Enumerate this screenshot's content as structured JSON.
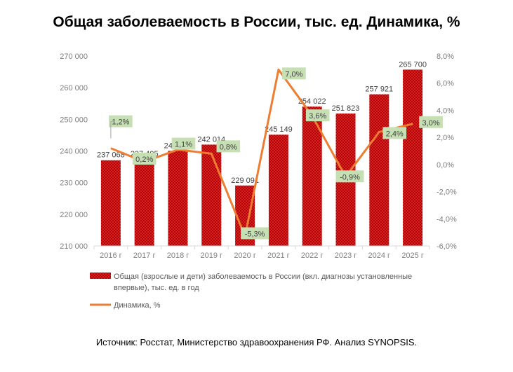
{
  "title": "Общая заболеваемость в России, тыс. ед. Динамика, %",
  "source": "Источник: Росстат, Министерство здравоохранения РФ. Анализ SYNOPSIS.",
  "colors": {
    "bar": "#c00000",
    "bar_dots": "#ffffff",
    "line": "#ed7d31",
    "label_bg": "#c6e0b4",
    "grid": "#d9d9d9"
  },
  "chart_data": {
    "type": "bar",
    "categories": [
      "2016 г",
      "2017 г",
      "2018 г",
      "2019 г",
      "2020 г",
      "2021 г",
      "2022 г",
      "2023 г",
      "2024 г",
      "2025 г"
    ],
    "series": [
      {
        "name": "Общая (взрослые и дети) заболеваемость в России (вкл. диагнозы установленные впервые), тыс. ед. в год",
        "type": "bar",
        "axis": "left",
        "values": [
          237068,
          237495,
          240046,
          242014,
          229091,
          245149,
          254022,
          251823,
          257921,
          265700
        ],
        "labels": [
          "237 068",
          "237 495",
          "240 046",
          "242 014",
          "229 091",
          "245 149",
          "254 022",
          "251 823",
          "257 921",
          "265 700"
        ]
      },
      {
        "name": "Динамика, %",
        "type": "line",
        "axis": "right",
        "values": [
          1.2,
          0.2,
          1.1,
          0.8,
          -5.3,
          7.0,
          3.6,
          -0.9,
          2.4,
          3.0
        ],
        "labels": [
          "1,2%",
          "0,2%",
          "1,1%",
          "0,8%",
          "-5,3%",
          "7,0%",
          "3,6%",
          "-0,9%",
          "2,4%",
          "3,0%"
        ]
      }
    ],
    "ylim_left": [
      210000,
      270000
    ],
    "yticks_left": [
      "210 000",
      "220 000",
      "230 000",
      "240 000",
      "250 000",
      "260 000",
      "270 000"
    ],
    "ylim_right": [
      -6,
      8
    ],
    "yticks_right": [
      "-6,0%",
      "-4,0%",
      "-2,0%",
      "0,0%",
      "2,0%",
      "4,0%",
      "6,0%",
      "8,0%"
    ],
    "legend": {
      "position": "bottom",
      "bar_lines": [
        "Общая (взрослые и дети) заболеваемость в России (вкл. диагнозы установленные",
        "впервые), тыс. ед. в год"
      ],
      "line_label": "Динамика, %"
    },
    "grid": false
  }
}
